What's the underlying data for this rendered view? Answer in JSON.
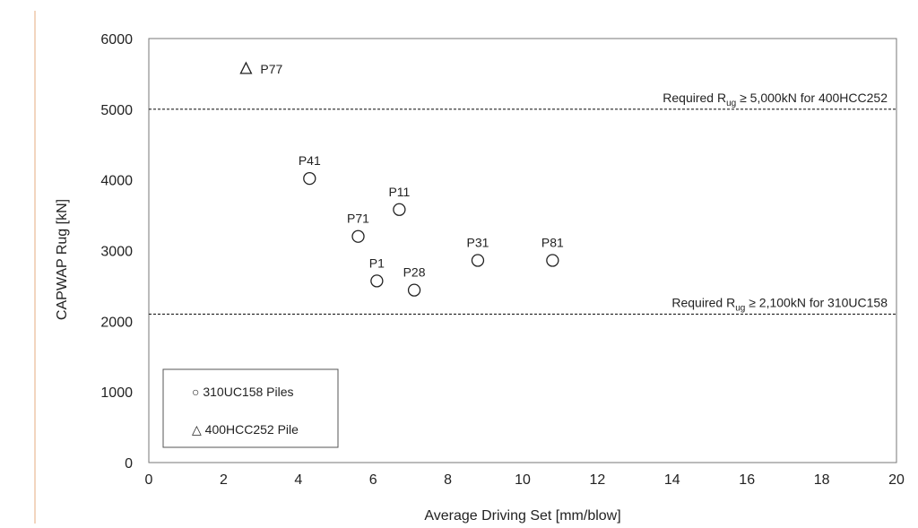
{
  "chart_data": {
    "type": "scatter",
    "xlabel": "Average Driving Set [mm/blow]",
    "ylabel": "CAPWAP Rug [kN]",
    "xlim": [
      0,
      20
    ],
    "ylim": [
      0,
      6000
    ],
    "xticks": [
      0,
      2,
      4,
      6,
      8,
      10,
      12,
      14,
      16,
      18,
      20
    ],
    "yticks": [
      0,
      1000,
      2000,
      3000,
      4000,
      5000,
      6000
    ],
    "grid": false,
    "legend_position": "bottom-left",
    "series": [
      {
        "name": "310UC158 Piles",
        "marker": "circle",
        "points": [
          {
            "label": "P41",
            "x": 4.3,
            "y": 4020
          },
          {
            "label": "P11",
            "x": 6.7,
            "y": 3580
          },
          {
            "label": "P71",
            "x": 5.6,
            "y": 3200
          },
          {
            "label": "P31",
            "x": 8.8,
            "y": 2860
          },
          {
            "label": "P81",
            "x": 10.8,
            "y": 2860
          },
          {
            "label": "P1",
            "x": 6.1,
            "y": 2570
          },
          {
            "label": "P28",
            "x": 7.1,
            "y": 2440
          }
        ]
      },
      {
        "name": "400HCC252 Pile",
        "marker": "triangle",
        "points": [
          {
            "label": "P77",
            "x": 2.6,
            "y": 5570
          }
        ]
      }
    ],
    "reference_lines": [
      {
        "y": 5000,
        "prefix": "Required R",
        "subscript": "ug",
        "suffix": " ≥ 5,000kN for 400HCC252"
      },
      {
        "y": 2100,
        "prefix": "Required R",
        "subscript": "ug",
        "suffix": " ≥ 2,100kN for 310UC158"
      }
    ],
    "legend": [
      {
        "symbol": "○",
        "label": "310UC158 Piles"
      },
      {
        "symbol": "△",
        "label": "400HCC252 Pile"
      }
    ]
  }
}
